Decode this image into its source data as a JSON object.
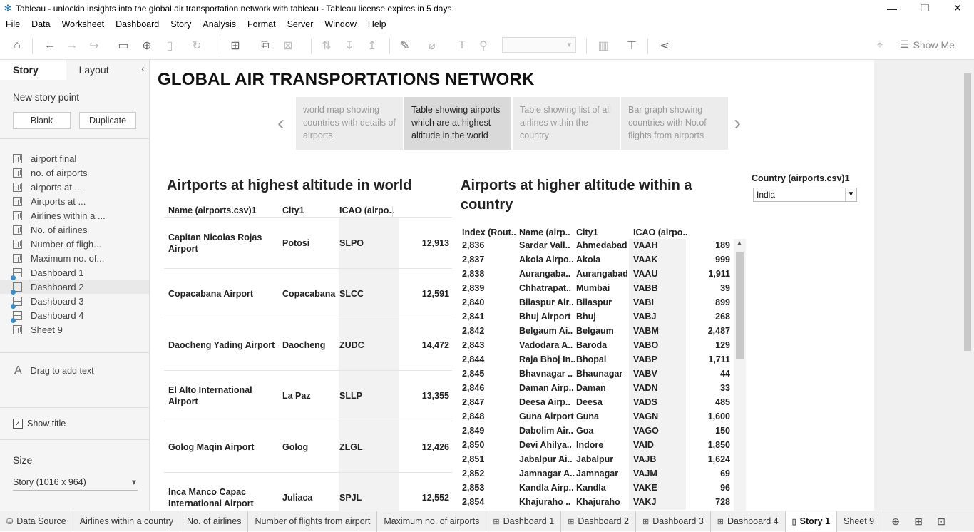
{
  "window": {
    "title": "Tableau - unlockin insights into the global air transportation network with tableau - Tableau license expires in 5 days"
  },
  "menu": [
    "File",
    "Data",
    "Worksheet",
    "Dashboard",
    "Story",
    "Analysis",
    "Format",
    "Server",
    "Window",
    "Help"
  ],
  "toolbar": {
    "show_me_label": "Show Me"
  },
  "sidebar": {
    "tabs": {
      "story": "Story",
      "layout": "Layout"
    },
    "new_story_point": "New story point",
    "blank_label": "Blank",
    "duplicate_label": "Duplicate",
    "sheets": [
      {
        "label": "airport final",
        "type": "sheet"
      },
      {
        "label": "no. of airports",
        "type": "sheet"
      },
      {
        "label": "airports at ...",
        "type": "sheet"
      },
      {
        "label": "Airtports at ...",
        "type": "sheet"
      },
      {
        "label": "Airlines within a ...",
        "type": "sheet"
      },
      {
        "label": "No. of airlines",
        "type": "sheet"
      },
      {
        "label": "Number of fligh...",
        "type": "sheet"
      },
      {
        "label": "Maximum no. of...",
        "type": "sheet"
      },
      {
        "label": "Dashboard 1",
        "type": "dashboard"
      },
      {
        "label": "Dashboard 2",
        "type": "dashboard"
      },
      {
        "label": "Dashboard 3",
        "type": "dashboard"
      },
      {
        "label": "Dashboard 4",
        "type": "dashboard"
      },
      {
        "label": "Sheet 9",
        "type": "sheet"
      }
    ],
    "drag_text_label": "Drag to add text",
    "show_title_label": "Show title",
    "show_title_checked": true,
    "size_label": "Size",
    "size_value": "Story (1016 x 964)"
  },
  "story": {
    "title": "GLOBAL AIR TRANSPORTATIONS NETWORK",
    "points": [
      "world map showing countries with details of airports",
      "Table showing airports which are  at highest altitude in the world",
      "Table showing list of all  airlines within the country",
      "Bar graph showing countries with No.of flights from airports"
    ],
    "active_point": 1
  },
  "left_table": {
    "title": "Airtports at highest altitude in world",
    "headers": [
      "Name (airports.csv)1",
      "City1",
      "ICAO (airpo.."
    ],
    "rows": [
      {
        "name": "Capitan Nicolas Rojas Airport",
        "city": "Potosi",
        "icao": "SLPO",
        "alt": "12,913"
      },
      {
        "name": "Copacabana Airport",
        "city": "Copacabana",
        "icao": "SLCC",
        "alt": "12,591"
      },
      {
        "name": "Daocheng Yading Airport",
        "city": "Daocheng",
        "icao": "ZUDC",
        "alt": "14,472"
      },
      {
        "name": "El Alto International Airport",
        "city": "La Paz",
        "icao": "SLLP",
        "alt": "13,355"
      },
      {
        "name": "Golog Maqin Airport",
        "city": "Golog",
        "icao": "ZLGL",
        "alt": "12,426"
      },
      {
        "name": "Inca Manco Capac International Airport",
        "city": "Juliaca",
        "icao": "SPJL",
        "alt": "12,552"
      }
    ]
  },
  "right_table": {
    "title": "Airports at higher altitude within a country",
    "headers": [
      "Index (Rout..",
      "Name (airp..",
      "City1",
      "ICAO (airpo.."
    ],
    "rows": [
      {
        "idx": "2,836",
        "name": "Sardar Vall..",
        "city": "Ahmedabad",
        "icao": "VAAH",
        "alt": "189"
      },
      {
        "idx": "2,837",
        "name": "Akola Airpo..",
        "city": "Akola",
        "icao": "VAAK",
        "alt": "999"
      },
      {
        "idx": "2,838",
        "name": "Aurangaba..",
        "city": "Aurangabad",
        "icao": "VAAU",
        "alt": "1,911"
      },
      {
        "idx": "2,839",
        "name": "Chhatrapat..",
        "city": "Mumbai",
        "icao": "VABB",
        "alt": "39"
      },
      {
        "idx": "2,840",
        "name": "Bilaspur Air..",
        "city": "Bilaspur",
        "icao": "VABI",
        "alt": "899"
      },
      {
        "idx": "2,841",
        "name": "Bhuj Airport",
        "city": "Bhuj",
        "icao": "VABJ",
        "alt": "268"
      },
      {
        "idx": "2,842",
        "name": "Belgaum Ai..",
        "city": "Belgaum",
        "icao": "VABM",
        "alt": "2,487"
      },
      {
        "idx": "2,843",
        "name": "Vadodara A..",
        "city": "Baroda",
        "icao": "VABO",
        "alt": "129"
      },
      {
        "idx": "2,844",
        "name": "Raja Bhoj In..",
        "city": "Bhopal",
        "icao": "VABP",
        "alt": "1,711"
      },
      {
        "idx": "2,845",
        "name": "Bhavnagar ..",
        "city": "Bhaunagar",
        "icao": "VABV",
        "alt": "44"
      },
      {
        "idx": "2,846",
        "name": "Daman Airp..",
        "city": "Daman",
        "icao": "VADN",
        "alt": "33"
      },
      {
        "idx": "2,847",
        "name": "Deesa Airp..",
        "city": "Deesa",
        "icao": "VADS",
        "alt": "485"
      },
      {
        "idx": "2,848",
        "name": "Guna Airport",
        "city": "Guna",
        "icao": "VAGN",
        "alt": "1,600"
      },
      {
        "idx": "2,849",
        "name": "Dabolim Air..",
        "city": "Goa",
        "icao": "VAGO",
        "alt": "150"
      },
      {
        "idx": "2,850",
        "name": "Devi Ahilya..",
        "city": "Indore",
        "icao": "VAID",
        "alt": "1,850"
      },
      {
        "idx": "2,851",
        "name": "Jabalpur Ai..",
        "city": "Jabalpur",
        "icao": "VAJB",
        "alt": "1,624"
      },
      {
        "idx": "2,852",
        "name": "Jamnagar A..",
        "city": "Jamnagar",
        "icao": "VAJM",
        "alt": "69"
      },
      {
        "idx": "2,853",
        "name": "Kandla Airp..",
        "city": "Kandla",
        "icao": "VAKE",
        "alt": "96"
      },
      {
        "idx": "2,854",
        "name": "Khajuraho ..",
        "city": "Khajuraho",
        "icao": "VAKJ",
        "alt": "728"
      }
    ]
  },
  "filter": {
    "label": "Country (airports.csv)1",
    "value": "India"
  },
  "status_tabs": [
    {
      "label": "Data Source",
      "icon": "database-icon",
      "active": false
    },
    {
      "label": "Airlines within a country",
      "icon": "",
      "active": false
    },
    {
      "label": "No. of airlines",
      "icon": "",
      "active": false
    },
    {
      "label": "Number of flights from airport",
      "icon": "",
      "active": false
    },
    {
      "label": "Maximum no. of airports",
      "icon": "",
      "active": false
    },
    {
      "label": "Dashboard 1",
      "icon": "dashboard-icon",
      "active": false
    },
    {
      "label": "Dashboard 2",
      "icon": "dashboard-icon",
      "active": false
    },
    {
      "label": "Dashboard 3",
      "icon": "dashboard-icon",
      "active": false
    },
    {
      "label": "Dashboard 4",
      "icon": "dashboard-icon",
      "active": false
    },
    {
      "label": "Story 1",
      "icon": "story-icon",
      "active": true
    },
    {
      "label": "Sheet 9",
      "icon": "",
      "active": false
    }
  ]
}
